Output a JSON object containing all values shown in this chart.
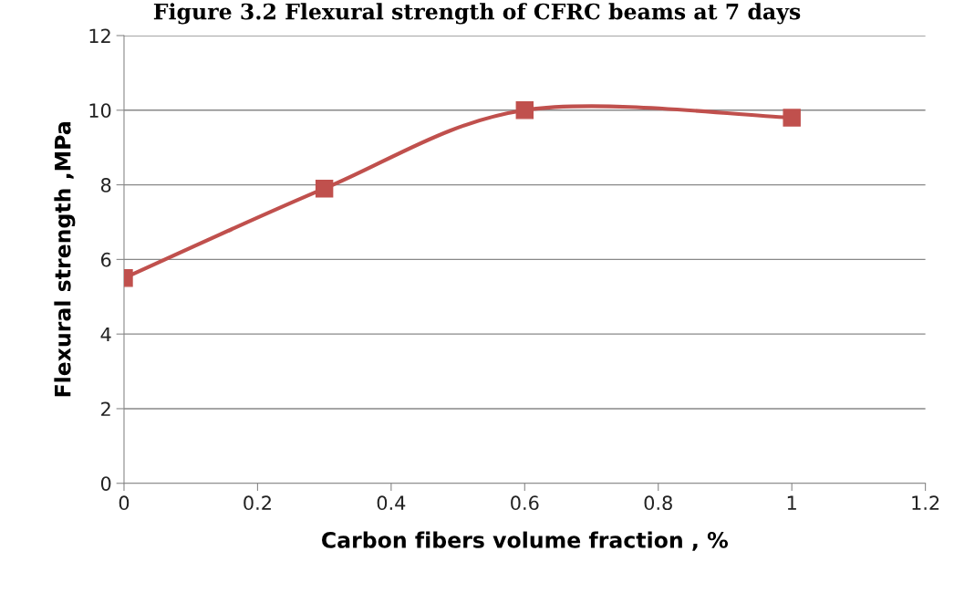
{
  "chart_data": {
    "type": "line",
    "title": "Figure 3.2 Flexural strength of CFRC beams at 7 days",
    "xlabel": "Carbon fibers volume fraction , %",
    "ylabel": "Flexural strength ,MPa",
    "x": [
      0,
      0.3,
      0.6,
      1
    ],
    "series": [
      {
        "color": "#c0504d",
        "values": [
          5.5,
          7.9,
          10.0,
          9.8
        ]
      }
    ],
    "xlim": [
      0,
      1.2
    ],
    "xticks": [
      0,
      0.2,
      0.4,
      0.6,
      0.8,
      1,
      1.2
    ],
    "ylim": [
      0,
      12
    ],
    "yticks": [
      0,
      2,
      4,
      6,
      8,
      10,
      12
    ],
    "grid": "y",
    "marker": "square",
    "line_style": "solid",
    "legend": false
  }
}
